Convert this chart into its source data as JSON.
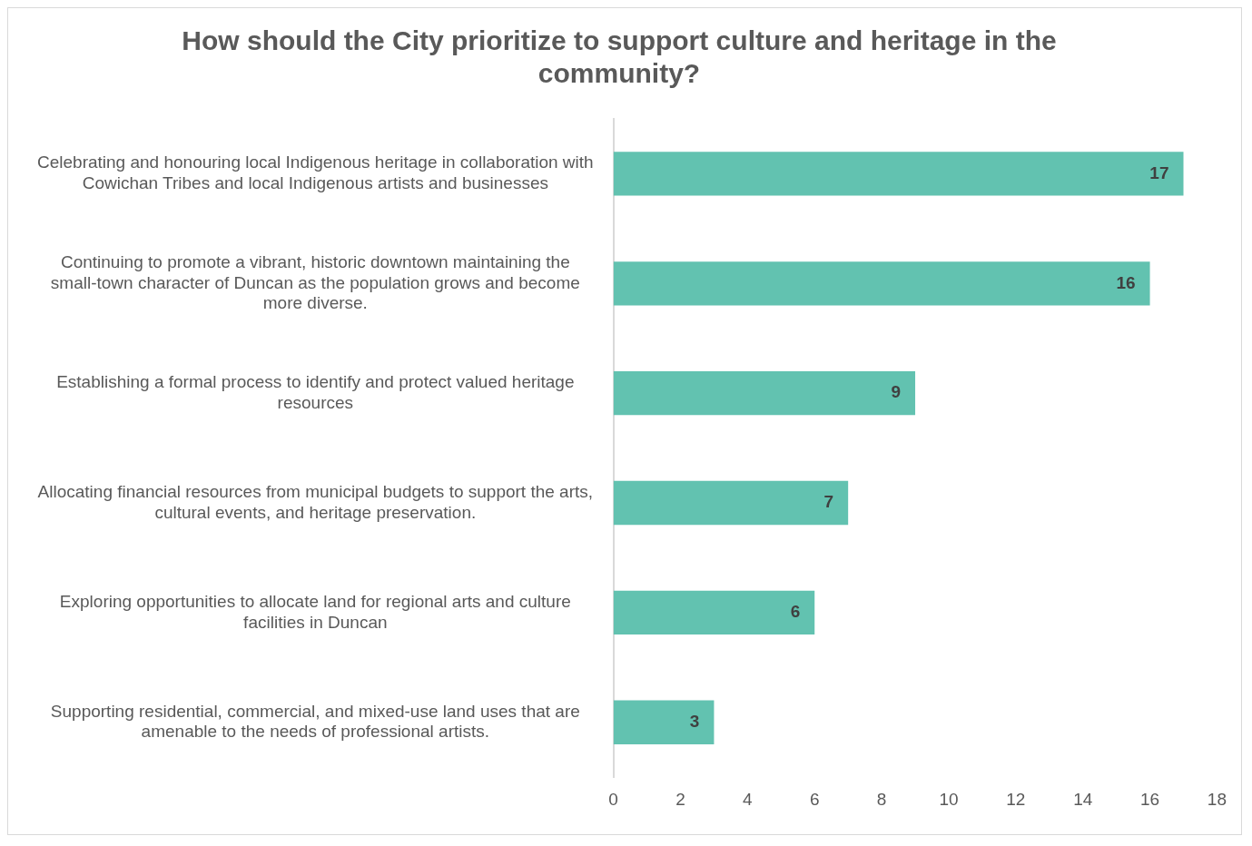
{
  "chart_data": {
    "type": "bar",
    "orientation": "horizontal",
    "title": "How should the City prioritize to support culture and heritage in the community?",
    "categories": [
      "Celebrating and honouring local Indigenous heritage in collaboration with Cowichan Tribes and local Indigenous artists and businesses",
      "Continuing to promote a vibrant, historic downtown maintaining the small-town character of Duncan as the population grows and become more diverse.",
      "Establishing a formal process to identify and protect valued heritage resources",
      "Allocating financial resources from municipal budgets to support the arts, cultural events, and heritage preservation.",
      "Exploring opportunities to allocate land for regional arts and culture facilities in Duncan",
      "Supporting residential, commercial, and mixed-use land uses that are amenable to the needs of professional artists."
    ],
    "values": [
      17,
      16,
      9,
      7,
      6,
      3
    ],
    "color": "#62c2b0",
    "xlim": [
      0,
      18
    ],
    "xticks": [
      0,
      2,
      4,
      6,
      8,
      10,
      12,
      14,
      16,
      18
    ],
    "grid": false,
    "legend": false,
    "data_labels": true
  }
}
